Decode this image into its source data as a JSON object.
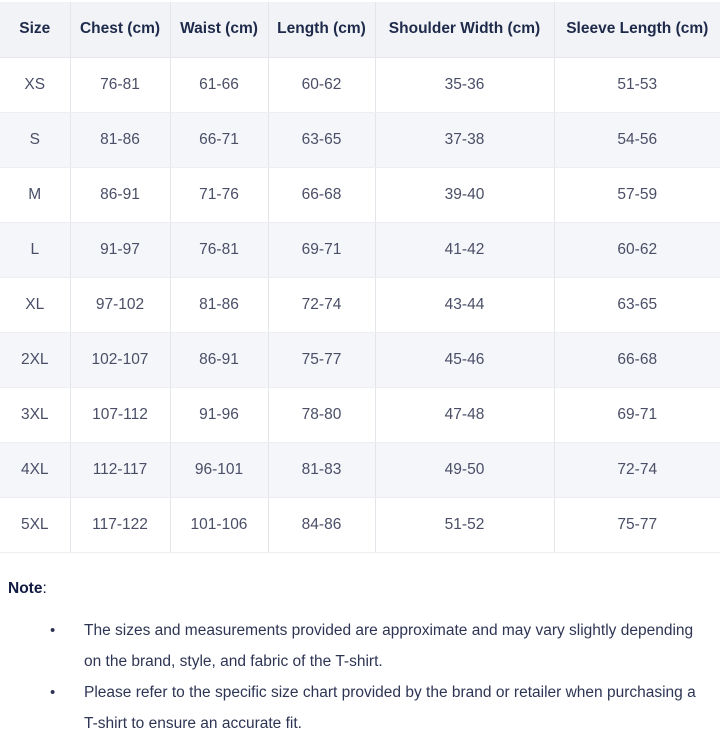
{
  "table": {
    "columns": [
      "Size",
      "Chest (cm)",
      "Waist (cm)",
      "Length (cm)",
      "Shoulder Width (cm)",
      "Sleeve Length (cm)"
    ],
    "rows": [
      [
        "XS",
        "76-81",
        "61-66",
        "60-62",
        "35-36",
        "51-53"
      ],
      [
        "S",
        "81-86",
        "66-71",
        "63-65",
        "37-38",
        "54-56"
      ],
      [
        "M",
        "86-91",
        "71-76",
        "66-68",
        "39-40",
        "57-59"
      ],
      [
        "L",
        "91-97",
        "76-81",
        "69-71",
        "41-42",
        "60-62"
      ],
      [
        "XL",
        "97-102",
        "81-86",
        "72-74",
        "43-44",
        "63-65"
      ],
      [
        "2XL",
        "102-107",
        "86-91",
        "75-77",
        "45-46",
        "66-68"
      ],
      [
        "3XL",
        "107-112",
        "91-96",
        "78-80",
        "47-48",
        "69-71"
      ],
      [
        "4XL",
        "112-117",
        "96-101",
        "81-83",
        "49-50",
        "72-74"
      ],
      [
        "5XL",
        "117-122",
        "101-106",
        "84-86",
        "51-52",
        "75-77"
      ]
    ]
  },
  "note": {
    "label": "Note",
    "colon": ":",
    "bullet_glyph": "•",
    "items": [
      "The sizes and measurements provided are approximate and may vary slightly depending on the brand, style, and fabric of the T-shirt.",
      "Please refer to the specific size chart provided by the brand or retailer when purchasing a T-shirt to ensure an accurate fit."
    ]
  },
  "colors": {
    "header_bg": "#f2f3f7",
    "stripe_bg": "#f5f6fa",
    "header_text": "#1e2a4a",
    "cell_text": "#4a4e66",
    "note_text": "#2e3554",
    "border_vertical": "#e4e5eb",
    "border_horizontal": "#ededf2"
  }
}
